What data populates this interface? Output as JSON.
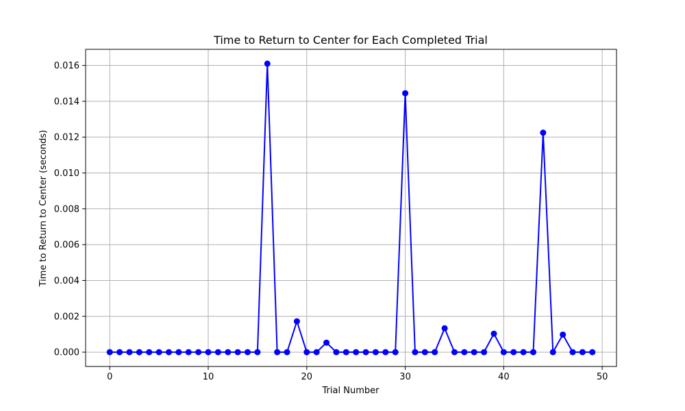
{
  "chart_data": {
    "type": "line",
    "title": "Time to Return to Center for Each Completed Trial",
    "xlabel": "Trial Number",
    "ylabel": "Time to Return to Center (seconds)",
    "xlim": [
      -2.45,
      51.45
    ],
    "ylim": [
      -0.0008,
      0.0169
    ],
    "xticks": [
      0,
      10,
      20,
      30,
      40,
      50
    ],
    "xtick_labels": [
      "0",
      "10",
      "20",
      "30",
      "40",
      "50"
    ],
    "yticks": [
      0.0,
      0.002,
      0.004,
      0.006,
      0.008,
      0.01,
      0.012,
      0.014,
      0.016
    ],
    "ytick_labels": [
      "0.000",
      "0.002",
      "0.004",
      "0.006",
      "0.008",
      "0.010",
      "0.012",
      "0.014",
      "0.016"
    ],
    "grid": true,
    "series": [
      {
        "color": "#0000ff",
        "marker": "circle",
        "x": [
          0,
          1,
          2,
          3,
          4,
          5,
          6,
          7,
          8,
          9,
          10,
          11,
          12,
          13,
          14,
          15,
          16,
          17,
          18,
          19,
          20,
          21,
          22,
          23,
          24,
          25,
          26,
          27,
          28,
          29,
          30,
          31,
          32,
          33,
          34,
          35,
          36,
          37,
          38,
          39,
          40,
          41,
          42,
          43,
          44,
          45,
          46,
          47,
          48,
          49
        ],
        "y": [
          0,
          0,
          0,
          0,
          0,
          0,
          0,
          0,
          0,
          0,
          0,
          0,
          0,
          0,
          0,
          0,
          0.0161,
          0,
          0,
          0.00172,
          0,
          0,
          0.00053,
          0,
          0,
          0,
          0,
          0,
          0,
          0,
          0.01445,
          0,
          0,
          0,
          0.00133,
          0,
          0,
          0,
          0,
          0.00103,
          0,
          0,
          0,
          0,
          0.01225,
          0,
          0.00098,
          0,
          0,
          0
        ]
      }
    ]
  }
}
